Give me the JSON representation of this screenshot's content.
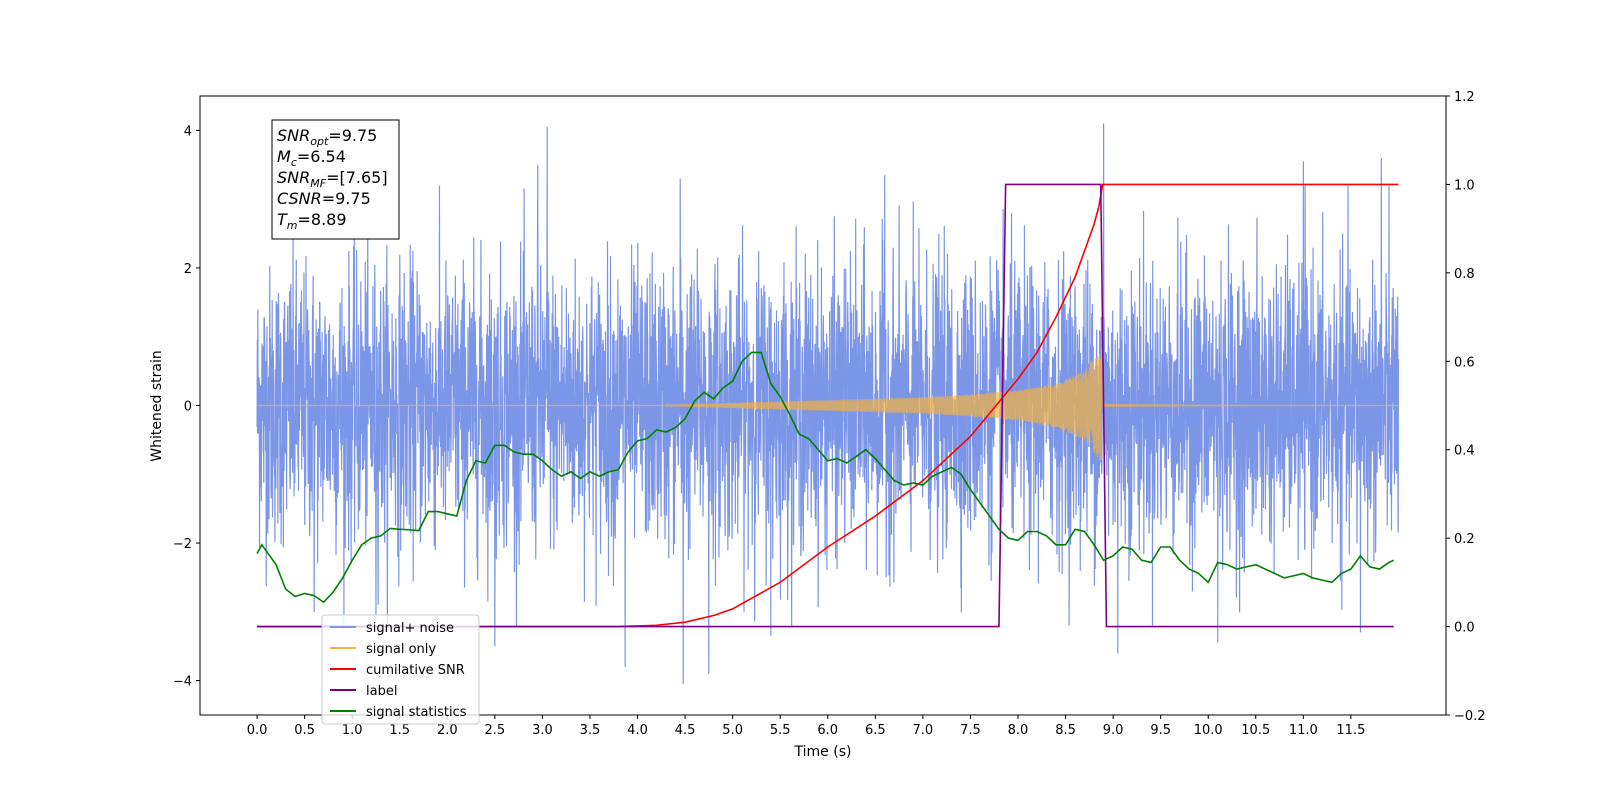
{
  "chart_data": {
    "type": "line",
    "title": "",
    "xlabel": "Time (s)",
    "ylabel": "Whitened strain",
    "y2label": "",
    "xlim": [
      -0.6,
      12.5
    ],
    "ylim": [
      -4.5,
      4.5
    ],
    "y2lim": [
      -0.2,
      1.2
    ],
    "x_ticks": [
      0.0,
      0.5,
      1.0,
      1.5,
      2.0,
      2.5,
      3.0,
      3.5,
      4.0,
      4.5,
      5.0,
      5.5,
      6.0,
      6.5,
      7.0,
      7.5,
      8.0,
      8.5,
      9.0,
      9.5,
      10.0,
      10.5,
      11.0,
      11.5
    ],
    "x_tick_labels": [
      "0.0",
      "0.5",
      "1.0",
      "1.5",
      "2.0",
      "2.5",
      "3.0",
      "3.5",
      "4.0",
      "4.5",
      "5.0",
      "5.5",
      "6.0",
      "6.5",
      "7.0",
      "7.5",
      "8.0",
      "8.5",
      "9.0",
      "9.5",
      "10.0",
      "10.5",
      "11.0",
      "11.5"
    ],
    "y_ticks": [
      -4,
      -2,
      0,
      2,
      4
    ],
    "y_tick_labels": [
      "−4",
      "−2",
      "0",
      "2",
      "4"
    ],
    "y2_ticks": [
      -0.2,
      0.0,
      0.2,
      0.4,
      0.6,
      0.8,
      1.0,
      1.2
    ],
    "y2_tick_labels": [
      "−0.2",
      "0.0",
      "0.2",
      "0.4",
      "0.6",
      "0.8",
      "1.0",
      "1.2"
    ],
    "grid": false,
    "legend_position": "lower-left",
    "info_box": {
      "lines": [
        {
          "symbol": "SNR",
          "sub": "opt",
          "value": "=9.75"
        },
        {
          "symbol": "M",
          "sub": "c",
          "value": "=6.54"
        },
        {
          "symbol": "SNR",
          "sub": "MF",
          "value": "=[7.65]"
        },
        {
          "symbol": "CSNR",
          "sub": "",
          "value": "=9.75"
        },
        {
          "symbol": "T",
          "sub": "m",
          "value": "=8.89"
        }
      ]
    },
    "series": [
      {
        "name": "signal+ noise",
        "axis": "left",
        "color": "#7b96e6",
        "kind": "noise",
        "x_range": [
          0.0,
          12.0
        ],
        "std": 1.0,
        "y_range": [
          -4.1,
          4.1
        ],
        "peaks": [
          [
            3.05,
            4.05
          ],
          [
            8.9,
            4.1
          ],
          [
            4.45,
            3.3
          ],
          [
            11.82,
            3.6
          ],
          [
            2.95,
            3.5
          ],
          [
            6.6,
            3.35
          ],
          [
            11.0,
            3.55
          ],
          [
            4.48,
            -4.05
          ],
          [
            3.87,
            -3.8
          ],
          [
            4.75,
            -3.9
          ],
          [
            9.05,
            -3.6
          ],
          [
            10.1,
            -3.45
          ],
          [
            2.5,
            -3.5
          ],
          [
            5.4,
            -3.35
          ],
          [
            11.6,
            -3.3
          ],
          [
            1.25,
            -3.1
          ],
          [
            0.6,
            -3.0
          ]
        ]
      },
      {
        "name": "signal only",
        "axis": "left",
        "color": "#f5b042",
        "kind": "chirp",
        "x_range": [
          0.0,
          12.0
        ],
        "merger_time": 8.89,
        "envelope": [
          [
            4.3,
            0.01
          ],
          [
            5.0,
            0.04
          ],
          [
            6.0,
            0.08
          ],
          [
            7.0,
            0.12
          ],
          [
            7.5,
            0.16
          ],
          [
            8.0,
            0.22
          ],
          [
            8.4,
            0.32
          ],
          [
            8.7,
            0.5
          ],
          [
            8.89,
            0.85
          ],
          [
            8.93,
            0.05
          ],
          [
            10.0,
            0.02
          ],
          [
            12.0,
            0.0
          ]
        ]
      },
      {
        "name": "cumilative SNR",
        "axis": "right",
        "color": "#ff0000",
        "x": [
          0.0,
          3.8,
          4.2,
          4.5,
          4.8,
          5.0,
          5.5,
          6.0,
          6.5,
          7.0,
          7.5,
          8.0,
          8.2,
          8.4,
          8.6,
          8.7,
          8.8,
          8.85,
          8.89,
          9.0,
          10.0,
          11.0,
          12.0
        ],
        "y": [
          0.0,
          0.0,
          0.003,
          0.01,
          0.025,
          0.04,
          0.1,
          0.18,
          0.25,
          0.33,
          0.43,
          0.56,
          0.62,
          0.7,
          0.79,
          0.85,
          0.91,
          0.95,
          1.0,
          1.0,
          1.0,
          1.0,
          1.0
        ]
      },
      {
        "name": "label",
        "axis": "right",
        "color": "#800080",
        "x": [
          0.0,
          7.8,
          7.87,
          8.87,
          8.93,
          11.95
        ],
        "y": [
          0.0,
          0.0,
          1.0,
          1.0,
          0.0,
          0.0
        ]
      },
      {
        "name": "signal statistics",
        "axis": "right",
        "color": "#008000",
        "x": [
          0.0,
          0.05,
          0.1,
          0.2,
          0.3,
          0.4,
          0.5,
          0.6,
          0.7,
          0.8,
          0.9,
          1.0,
          1.1,
          1.2,
          1.3,
          1.4,
          1.5,
          1.6,
          1.7,
          1.8,
          1.9,
          2.0,
          2.1,
          2.2,
          2.3,
          2.4,
          2.5,
          2.6,
          2.7,
          2.8,
          2.9,
          3.0,
          3.1,
          3.2,
          3.3,
          3.4,
          3.5,
          3.6,
          3.7,
          3.8,
          3.9,
          4.0,
          4.1,
          4.2,
          4.3,
          4.4,
          4.5,
          4.6,
          4.7,
          4.8,
          4.9,
          5.0,
          5.1,
          5.2,
          5.3,
          5.4,
          5.5,
          5.6,
          5.7,
          5.8,
          5.9,
          6.0,
          6.1,
          6.2,
          6.3,
          6.4,
          6.5,
          6.6,
          6.7,
          6.8,
          6.9,
          7.0,
          7.1,
          7.2,
          7.3,
          7.4,
          7.5,
          7.6,
          7.7,
          7.8,
          7.9,
          8.0,
          8.1,
          8.2,
          8.3,
          8.4,
          8.5,
          8.6,
          8.7,
          8.8,
          8.9,
          9.0,
          9.1,
          9.2,
          9.3,
          9.4,
          9.5,
          9.6,
          9.7,
          9.8,
          9.9,
          10.0,
          10.1,
          10.2,
          10.3,
          10.4,
          10.5,
          10.6,
          10.7,
          10.8,
          10.9,
          11.0,
          11.1,
          11.2,
          11.3,
          11.4,
          11.5,
          11.6,
          11.7,
          11.8,
          11.9,
          11.95
        ],
        "y": [
          0.165,
          0.185,
          0.17,
          0.14,
          0.085,
          0.068,
          0.075,
          0.07,
          0.055,
          0.078,
          0.11,
          0.15,
          0.185,
          0.2,
          0.205,
          0.222,
          0.22,
          0.219,
          0.217,
          0.26,
          0.26,
          0.255,
          0.25,
          0.33,
          0.375,
          0.37,
          0.41,
          0.41,
          0.395,
          0.39,
          0.39,
          0.375,
          0.355,
          0.34,
          0.35,
          0.335,
          0.35,
          0.34,
          0.35,
          0.355,
          0.395,
          0.42,
          0.425,
          0.445,
          0.44,
          0.45,
          0.47,
          0.51,
          0.53,
          0.515,
          0.54,
          0.555,
          0.6,
          0.62,
          0.62,
          0.55,
          0.52,
          0.48,
          0.435,
          0.425,
          0.4,
          0.375,
          0.38,
          0.37,
          0.385,
          0.4,
          0.38,
          0.355,
          0.33,
          0.32,
          0.325,
          0.32,
          0.34,
          0.35,
          0.36,
          0.345,
          0.31,
          0.28,
          0.25,
          0.22,
          0.2,
          0.195,
          0.215,
          0.215,
          0.205,
          0.185,
          0.185,
          0.22,
          0.215,
          0.185,
          0.15,
          0.16,
          0.18,
          0.175,
          0.15,
          0.145,
          0.18,
          0.18,
          0.15,
          0.13,
          0.12,
          0.1,
          0.145,
          0.14,
          0.13,
          0.135,
          0.14,
          0.13,
          0.12,
          0.11,
          0.115,
          0.12,
          0.11,
          0.105,
          0.1,
          0.12,
          0.13,
          0.16,
          0.135,
          0.13,
          0.145,
          0.15
        ]
      }
    ],
    "legend": [
      {
        "label": "signal+ noise",
        "color": "#7b96e6"
      },
      {
        "label": "signal only",
        "color": "#f5b042"
      },
      {
        "label": "cumilative SNR",
        "color": "#ff0000"
      },
      {
        "label": "label",
        "color": "#800080"
      },
      {
        "label": "signal statistics",
        "color": "#008000"
      }
    ]
  }
}
